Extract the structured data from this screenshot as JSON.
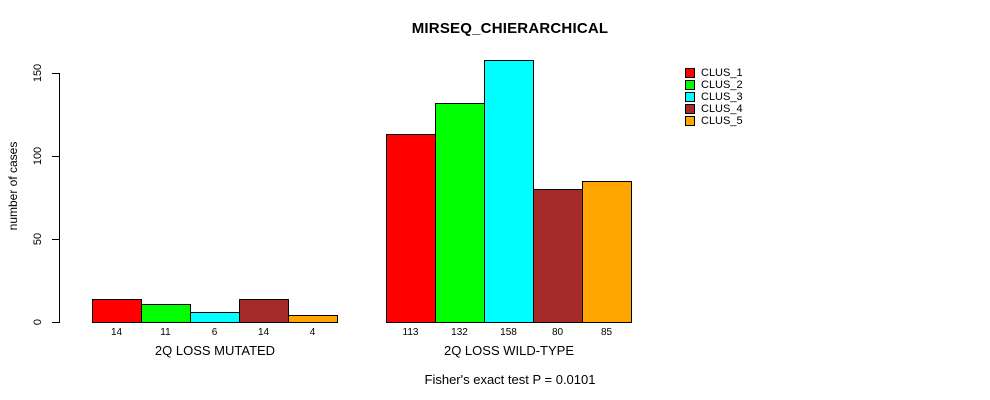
{
  "title": "MIRSEQ_CHIERARCHICAL",
  "footer_note": "Fisher's exact test P = 0.0101",
  "chart_data": {
    "type": "bar",
    "title": "MIRSEQ_CHIERARCHICAL",
    "ylabel": "number of cases",
    "xlabel": "",
    "categories": [
      "2Q LOSS MUTATED",
      "2Q LOSS WILD-TYPE"
    ],
    "series": [
      {
        "name": "CLUS_1",
        "color": "#FF0000",
        "values": [
          14,
          113
        ]
      },
      {
        "name": "CLUS_2",
        "color": "#00FF00",
        "values": [
          11,
          132
        ]
      },
      {
        "name": "CLUS_3",
        "color": "#00FFFF",
        "values": [
          6,
          158
        ]
      },
      {
        "name": "CLUS_4",
        "color": "#A52A2A",
        "values": [
          14,
          80
        ]
      },
      {
        "name": "CLUS_5",
        "color": "#FFA500",
        "values": [
          4,
          85
        ]
      }
    ],
    "yticks": [
      0,
      50,
      100,
      150
    ],
    "ylim": [
      0,
      160
    ],
    "grid": false,
    "bar_value_labels_shown": true,
    "legend_position": "top-right",
    "annotation": "Fisher's exact test P = 0.0101",
    "bar_border_color": "#000000",
    "background_color": "#FFFFFF"
  }
}
